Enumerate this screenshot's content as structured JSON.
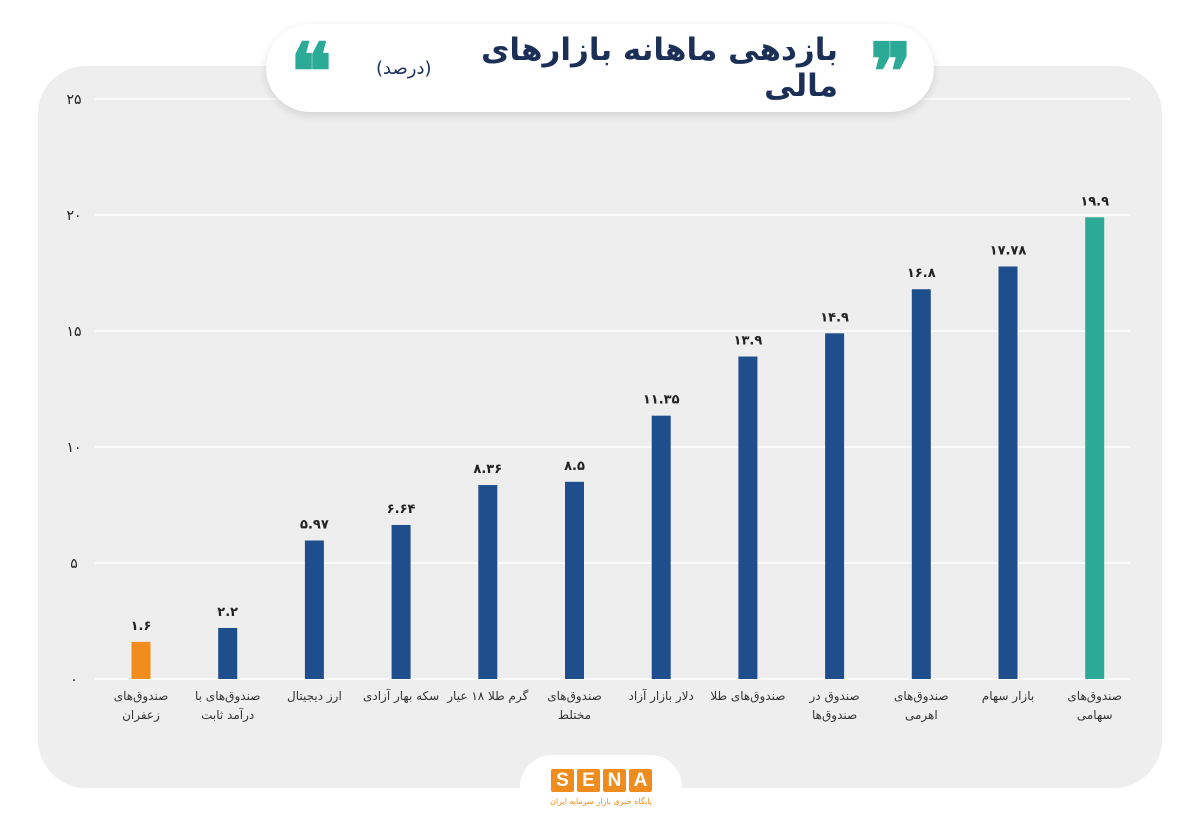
{
  "header": {
    "title": "بازدهی ماهانه بازارهای مالی",
    "subtitle": "(درصد)",
    "quote_right": "❞",
    "quote_left": "❝"
  },
  "logo": {
    "letters": [
      "S",
      "E",
      "N",
      "A"
    ],
    "tagline": "پایگاه خبری بازار سرمایه ایران"
  },
  "colors": {
    "bar_default": "#1f4e8c",
    "bar_lowest": "#f28c1c",
    "bar_highest": "#2aaa97",
    "quote": "#2aaa97",
    "title": "#1b2f57",
    "brand": "#f08c1e"
  },
  "chart_data": {
    "type": "bar",
    "title": "بازدهی ماهانه بازارهای مالی (درصد)",
    "xlabel": "",
    "ylabel": "",
    "ylim": [
      0,
      25
    ],
    "grid": true,
    "y_ticks": [
      {
        "value": 0,
        "label": "۰"
      },
      {
        "value": 5,
        "label": "۵"
      },
      {
        "value": 10,
        "label": "۱۰"
      },
      {
        "value": 15,
        "label": "۱۵"
      },
      {
        "value": 20,
        "label": "۲۰"
      },
      {
        "value": 25,
        "label": "۲۵"
      }
    ],
    "categories": [
      [
        "صندوق‌های",
        "زعفران"
      ],
      [
        "صندوق‌های با",
        "درآمد ثابت"
      ],
      [
        "ارز دیجیتال"
      ],
      [
        "سکه بهار آزادی"
      ],
      [
        "گرم طلا ۱۸ عیار"
      ],
      [
        "صندوق‌های",
        "مختلط"
      ],
      [
        "دلار بازار آزاد"
      ],
      [
        "صندوق‌های طلا"
      ],
      [
        "صندوق در",
        "صندوق‌ها"
      ],
      [
        "صندوق‌های",
        "اهرمی"
      ],
      [
        "بازار سهام"
      ],
      [
        "صندوق‌های",
        "سهامی"
      ]
    ],
    "values": [
      1.6,
      2.2,
      5.97,
      6.64,
      8.36,
      8.5,
      11.35,
      13.9,
      14.9,
      16.8,
      17.78,
      19.9
    ],
    "value_labels": [
      "۱.۶",
      "۲.۲",
      "۵.۹۷",
      "۶.۶۴",
      "۸.۳۶",
      "۸.۵",
      "۱۱.۳۵",
      "۱۳.۹",
      "۱۴.۹",
      "۱۶.۸",
      "۱۷.۷۸",
      "۱۹.۹"
    ],
    "bar_colors": [
      "#f28c1c",
      "#1f4e8c",
      "#1f4e8c",
      "#1f4e8c",
      "#1f4e8c",
      "#1f4e8c",
      "#1f4e8c",
      "#1f4e8c",
      "#1f4e8c",
      "#1f4e8c",
      "#1f4e8c",
      "#2aaa97"
    ]
  }
}
